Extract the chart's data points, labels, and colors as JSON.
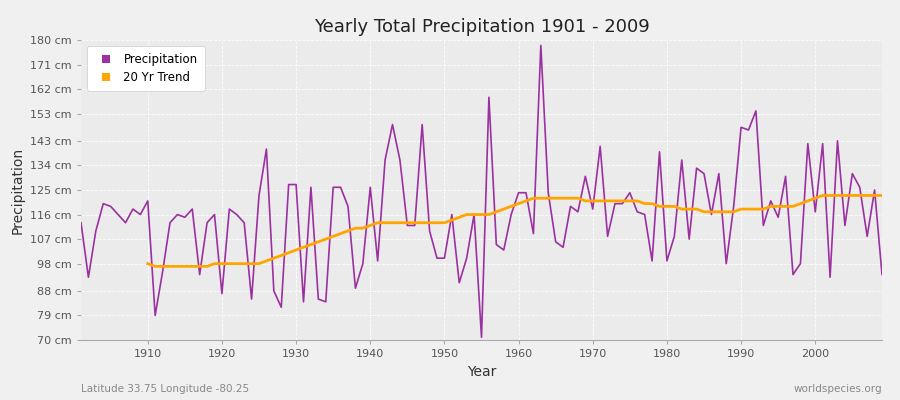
{
  "title": "Yearly Total Precipitation 1901 - 2009",
  "xlabel": "Year",
  "ylabel": "Precipitation",
  "subtitle": "Latitude 33.75 Longitude -80.25",
  "watermark": "worldspecies.org",
  "ylim": [
    70,
    180
  ],
  "yticks": [
    70,
    79,
    88,
    98,
    107,
    116,
    125,
    134,
    143,
    153,
    162,
    171,
    180
  ],
  "ytick_labels": [
    "70 cm",
    "79 cm",
    "88 cm",
    "98 cm",
    "107 cm",
    "116 cm",
    "125 cm",
    "134 cm",
    "143 cm",
    "153 cm",
    "162 cm",
    "171 cm",
    "180 cm"
  ],
  "xlim": [
    1901,
    2009
  ],
  "xticks": [
    1910,
    1920,
    1930,
    1940,
    1950,
    1960,
    1970,
    1980,
    1990,
    2000
  ],
  "precip_color": "#9b30a0",
  "trend_color": "#FFA500",
  "bg_color": "#f0f0f0",
  "plot_bg_color": "#ebebeb",
  "years": [
    1901,
    1902,
    1903,
    1904,
    1905,
    1906,
    1907,
    1908,
    1909,
    1910,
    1911,
    1912,
    1913,
    1914,
    1915,
    1916,
    1917,
    1918,
    1919,
    1920,
    1921,
    1922,
    1923,
    1924,
    1925,
    1926,
    1927,
    1928,
    1929,
    1930,
    1931,
    1932,
    1933,
    1934,
    1935,
    1936,
    1937,
    1938,
    1939,
    1940,
    1941,
    1942,
    1943,
    1944,
    1945,
    1946,
    1947,
    1948,
    1949,
    1950,
    1951,
    1952,
    1953,
    1954,
    1955,
    1956,
    1957,
    1958,
    1959,
    1960,
    1961,
    1962,
    1963,
    1964,
    1965,
    1966,
    1967,
    1968,
    1969,
    1970,
    1971,
    1972,
    1973,
    1974,
    1975,
    1976,
    1977,
    1978,
    1979,
    1980,
    1981,
    1982,
    1983,
    1984,
    1985,
    1986,
    1987,
    1988,
    1989,
    1990,
    1991,
    1992,
    1993,
    1994,
    1995,
    1996,
    1997,
    1998,
    1999,
    2000,
    2001,
    2002,
    2003,
    2004,
    2005,
    2006,
    2007,
    2008,
    2009
  ],
  "precip": [
    113,
    93,
    110,
    120,
    119,
    116,
    113,
    118,
    116,
    121,
    79,
    95,
    113,
    116,
    115,
    118,
    94,
    113,
    116,
    87,
    118,
    116,
    113,
    85,
    123,
    140,
    88,
    82,
    127,
    127,
    84,
    126,
    85,
    84,
    126,
    126,
    119,
    89,
    98,
    126,
    99,
    136,
    149,
    136,
    112,
    112,
    149,
    110,
    100,
    100,
    116,
    91,
    100,
    116,
    71,
    159,
    105,
    103,
    116,
    124,
    124,
    109,
    178,
    124,
    106,
    104,
    119,
    117,
    130,
    118,
    141,
    108,
    120,
    120,
    124,
    117,
    116,
    99,
    139,
    99,
    108,
    136,
    107,
    133,
    131,
    116,
    131,
    98,
    119,
    148,
    147,
    154,
    112,
    121,
    115,
    130,
    94,
    98,
    142,
    117,
    142,
    93,
    143,
    112,
    131,
    126,
    108,
    125,
    94
  ],
  "trend_years": [
    1910,
    1911,
    1912,
    1913,
    1914,
    1915,
    1916,
    1917,
    1918,
    1919,
    1920,
    1921,
    1922,
    1923,
    1924,
    1925,
    1926,
    1927,
    1928,
    1929,
    1930,
    1931,
    1932,
    1933,
    1934,
    1935,
    1936,
    1937,
    1938,
    1939,
    1940,
    1941,
    1942,
    1943,
    1944,
    1945,
    1946,
    1947,
    1948,
    1949,
    1950,
    1951,
    1952,
    1953,
    1954,
    1955,
    1956,
    1957,
    1958,
    1959,
    1960,
    1961,
    1962,
    1963,
    1964,
    1965,
    1966,
    1967,
    1968,
    1969,
    1970,
    1971,
    1972,
    1973,
    1974,
    1975,
    1976,
    1977,
    1978,
    1979,
    1980,
    1981,
    1982,
    1983,
    1984,
    1985,
    1986,
    1987,
    1988,
    1989,
    1990,
    1991,
    1992,
    1993,
    1994,
    1995,
    1996,
    1997,
    1998,
    1999,
    2000,
    2001,
    2002,
    2003,
    2004,
    2005,
    2006,
    2007,
    2008,
    2009
  ],
  "trend": [
    98,
    97,
    97,
    97,
    97,
    97,
    97,
    97,
    97,
    98,
    98,
    98,
    98,
    98,
    98,
    98,
    99,
    100,
    101,
    102,
    103,
    104,
    105,
    106,
    107,
    108,
    109,
    110,
    111,
    111,
    112,
    113,
    113,
    113,
    113,
    113,
    113,
    113,
    113,
    113,
    113,
    114,
    115,
    116,
    116,
    116,
    116,
    117,
    118,
    119,
    120,
    121,
    122,
    122,
    122,
    122,
    122,
    122,
    122,
    121,
    121,
    121,
    121,
    121,
    121,
    121,
    121,
    120,
    120,
    119,
    119,
    119,
    118,
    118,
    118,
    117,
    117,
    117,
    117,
    117,
    118,
    118,
    118,
    118,
    119,
    119,
    119,
    119,
    120,
    121,
    122,
    123,
    123,
    123,
    123,
    123,
    123,
    123,
    123,
    123
  ]
}
